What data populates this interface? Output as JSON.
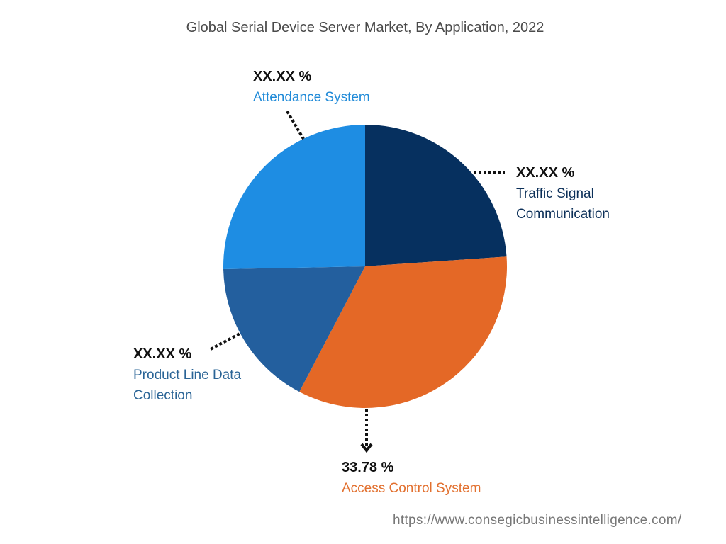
{
  "chart_data": {
    "type": "pie",
    "title": "Global Serial Device Server Market, By Application, 2022",
    "slices": [
      {
        "name": "Traffic Signal Communication",
        "label_lines": [
          "Traffic Signal",
          "Communication"
        ],
        "value": 23.9,
        "display": "XX.XX %",
        "color": "#06305f",
        "label_color": "#0b2f58"
      },
      {
        "name": "Access Control System",
        "label_lines": [
          "Access Control System"
        ],
        "value": 33.78,
        "display": "33.78 %",
        "color": "#e46826",
        "label_color": "#e2702f"
      },
      {
        "name": "Product Line Data Collection",
        "label_lines": [
          "Product Line Data",
          "Collection"
        ],
        "value": 17.0,
        "display": "XX.XX %",
        "color": "#235f9e",
        "label_color": "#2a6496"
      },
      {
        "name": "Attendance System",
        "label_lines": [
          "Attendance System"
        ],
        "value": 25.32,
        "display": "XX.XX %",
        "color": "#1e8de3",
        "label_color": "#1f8ad8"
      }
    ],
    "start": "12 o'clock, clockwise"
  },
  "footer": {
    "url": "https://www.consegicbusinessintelligence.com/"
  }
}
